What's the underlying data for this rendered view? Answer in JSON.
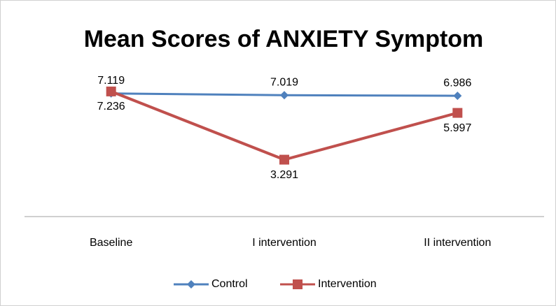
{
  "chart_data": {
    "type": "line",
    "title": "Mean Scores of ANXIETY Symptom",
    "categories": [
      "Baseline",
      "I intervention",
      "II intervention"
    ],
    "series": [
      {
        "name": "Control",
        "color": "#4f81bd",
        "values": [
          7.119,
          7.019,
          6.986
        ]
      },
      {
        "name": "Intervention",
        "color": "#c0504d",
        "values": [
          7.236,
          3.291,
          5.997
        ]
      }
    ],
    "ylim": [
      0,
      8
    ]
  }
}
